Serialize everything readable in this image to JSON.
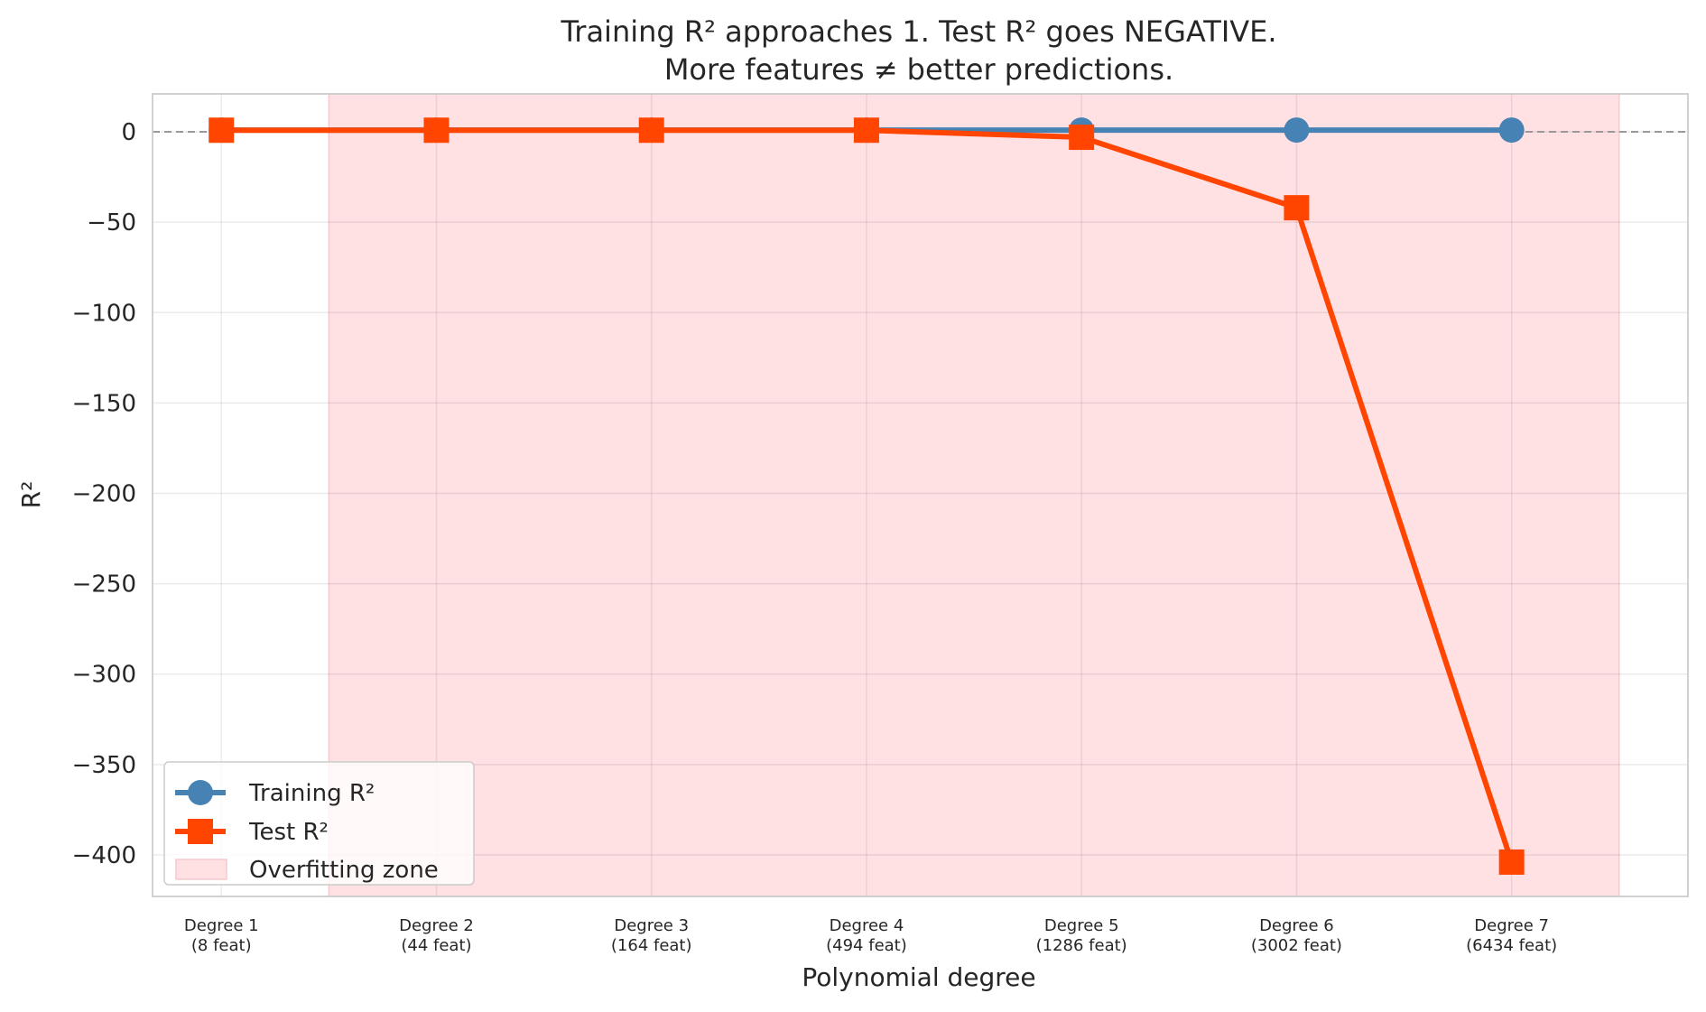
{
  "chart_data": {
    "type": "line",
    "title": "Training R² approaches 1. Test R² goes NEGATIVE.",
    "subtitle": "More features ≠ better predictions.",
    "xlabel": "Polynomial degree",
    "ylabel": "R²",
    "categories": [
      [
        "Degree 1",
        "(8 feat)"
      ],
      [
        "Degree 2",
        "(44 feat)"
      ],
      [
        "Degree 3",
        "(164 feat)"
      ],
      [
        "Degree 4",
        "(494 feat)"
      ],
      [
        "Degree 5",
        "(1286 feat)"
      ],
      [
        "Degree 6",
        "(3002 feat)"
      ],
      [
        "Degree 7",
        "(6434 feat)"
      ]
    ],
    "yticks": [
      0,
      -50,
      -100,
      -150,
      -200,
      -250,
      -300,
      -350,
      -400
    ],
    "ytick_labels": [
      "0",
      "−50",
      "−100",
      "−150",
      "−200",
      "−250",
      "−300",
      "−350",
      "−400"
    ],
    "ylim": [
      -423,
      21
    ],
    "xlim": [
      0.68,
      7.82
    ],
    "grid": true,
    "reference_line_y": 0,
    "shaded_region": {
      "label": "Overfitting zone",
      "x_from": 1.5,
      "x_to": 7.5,
      "color": "#ffe0e3"
    },
    "series": [
      {
        "name": "Training R²",
        "marker": "circle",
        "color": "#4682b4",
        "values": [
          0.99,
          0.99,
          0.99,
          0.99,
          0.99,
          0.99,
          0.99
        ]
      },
      {
        "name": "Test R²",
        "marker": "square",
        "color": "#ff4500",
        "values": [
          0.9,
          0.9,
          0.9,
          0.9,
          -3,
          -42,
          -404
        ]
      }
    ],
    "legend": {
      "placement": "bottom-left",
      "entries": [
        "Training R²",
        "Test R²",
        "Overfitting zone"
      ]
    }
  }
}
